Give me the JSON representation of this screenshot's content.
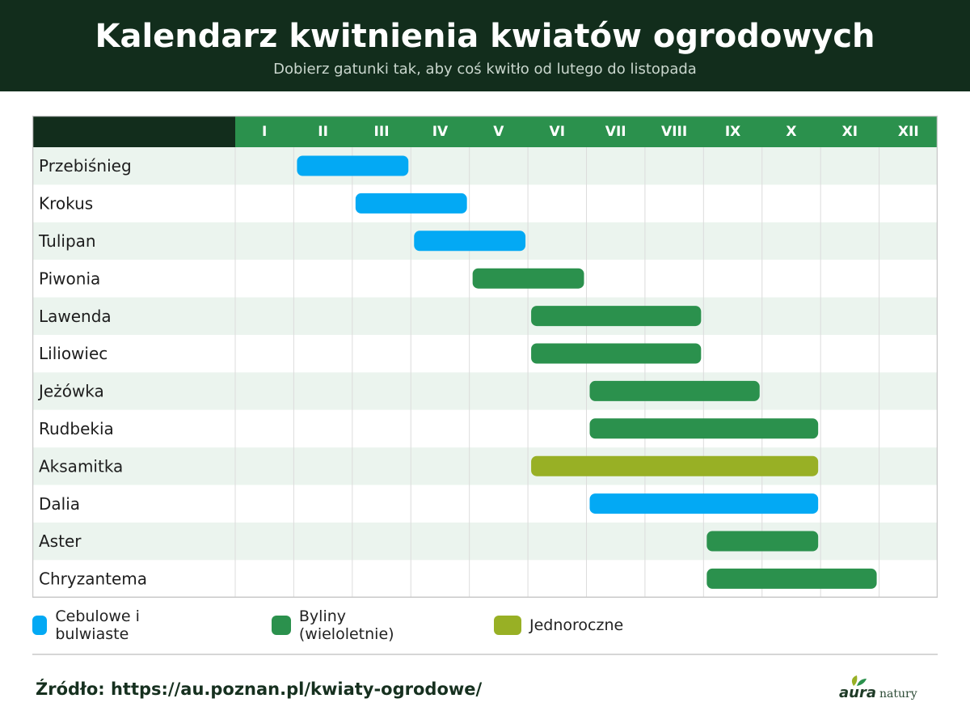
{
  "header": {
    "title": "Kalendarz kwitnienia kwiatów ogrodowych",
    "subtitle": "Dobierz gatunki tak, aby coś kwitło od lutego do listopada"
  },
  "chart_data": {
    "type": "gantt",
    "x_categories": [
      "I",
      "II",
      "III",
      "IV",
      "V",
      "VI",
      "VII",
      "VIII",
      "IX",
      "X",
      "XI",
      "XII"
    ],
    "rows": [
      {
        "label": "Przebiśnieg",
        "start": 2,
        "end": 3,
        "group": "bulb"
      },
      {
        "label": "Krokus",
        "start": 3,
        "end": 4,
        "group": "bulb"
      },
      {
        "label": "Tulipan",
        "start": 4,
        "end": 5,
        "group": "bulb"
      },
      {
        "label": "Piwonia",
        "start": 5,
        "end": 6,
        "group": "perennial"
      },
      {
        "label": "Lawenda",
        "start": 6,
        "end": 8,
        "group": "perennial"
      },
      {
        "label": "Liliowiec",
        "start": 6,
        "end": 8,
        "group": "perennial"
      },
      {
        "label": "Jeżówka",
        "start": 7,
        "end": 9,
        "group": "perennial"
      },
      {
        "label": "Rudbekia",
        "start": 7,
        "end": 10,
        "group": "perennial"
      },
      {
        "label": "Aksamitka",
        "start": 6,
        "end": 10,
        "group": "annual"
      },
      {
        "label": "Dalia",
        "start": 7,
        "end": 10,
        "group": "bulb"
      },
      {
        "label": "Aster",
        "start": 9,
        "end": 10,
        "group": "perennial"
      },
      {
        "label": "Chryzantema",
        "start": 9,
        "end": 11,
        "group": "perennial"
      }
    ],
    "groups": [
      {
        "key": "bulb",
        "name": "Cebulowe i bulwiaste",
        "color": "#03a9f4"
      },
      {
        "key": "perennial",
        "name": "Byliny (wieloletnie)",
        "color": "#2b914d"
      },
      {
        "key": "annual",
        "name": "Jednoroczne",
        "color": "#98b025"
      }
    ],
    "colors": {
      "header_dark": "#122d1c",
      "header_green": "#2b914d",
      "row_alt": "#ebf4ee",
      "grid": "#dcdcdc",
      "border": "#c8c8c8"
    }
  },
  "footer": {
    "source": "Źródło: https://au.poznan.pl/kwiaty-ogrodowe/",
    "logo_brand": "aura",
    "logo_sub": "natury"
  }
}
